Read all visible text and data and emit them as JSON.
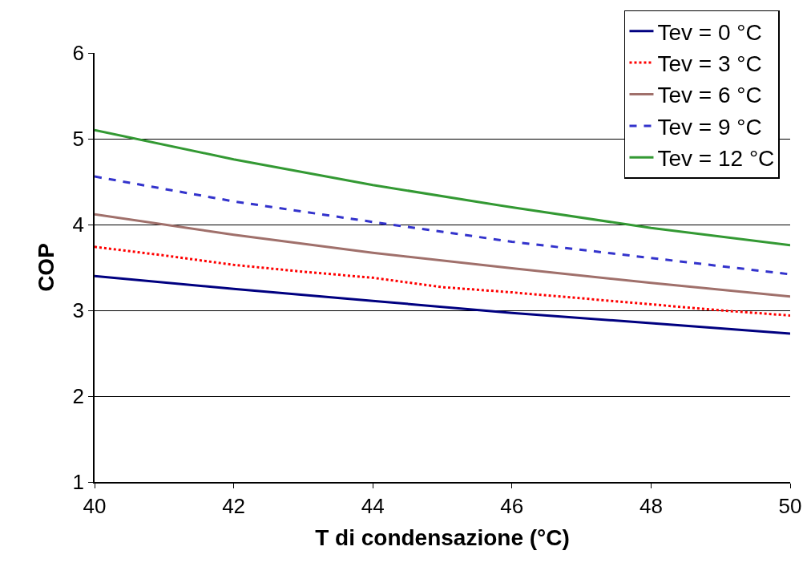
{
  "chart_data": {
    "type": "line",
    "xlabel": "T di condensazione (°C)",
    "ylabel": "COP",
    "xlim": [
      40,
      50
    ],
    "xticks": [
      40,
      42,
      44,
      46,
      48,
      50
    ],
    "ylim": [
      1,
      6
    ],
    "yticks": [
      1,
      2,
      3,
      4,
      5,
      6
    ],
    "grid": "y",
    "legend": "top right",
    "marker": "none",
    "series": [
      {
        "name": "Tev = 0 °C",
        "color": "#000080",
        "line_style": "solid",
        "x": [
          40,
          42,
          44,
          46,
          48,
          50
        ],
        "values": [
          3.4,
          3.25,
          3.11,
          2.97,
          2.85,
          2.73
        ]
      },
      {
        "name": "Tev = 3 °C",
        "color": "#ff0000",
        "line_style": "dotted",
        "x": [
          40,
          41,
          42,
          43,
          44,
          45,
          46,
          47,
          48,
          49,
          50
        ],
        "values": [
          3.74,
          3.64,
          3.53,
          3.45,
          3.38,
          3.27,
          3.21,
          3.14,
          3.07,
          3.0,
          2.94
        ]
      },
      {
        "name": "Tev = 6 °C",
        "color": "#a0706b",
        "line_style": "solid",
        "x": [
          40,
          42,
          44,
          46,
          48,
          50
        ],
        "values": [
          4.12,
          3.88,
          3.67,
          3.49,
          3.32,
          3.16
        ]
      },
      {
        "name": "Tev = 9 °C",
        "color": "#3333cc",
        "line_style": "dashed",
        "x": [
          40,
          42,
          44,
          46,
          48,
          50
        ],
        "values": [
          4.56,
          4.27,
          4.03,
          3.8,
          3.61,
          3.42
        ]
      },
      {
        "name": "Tev = 12 °C",
        "color": "#339933",
        "line_style": "solid",
        "x": [
          40,
          42,
          44,
          46,
          48,
          50
        ],
        "values": [
          5.1,
          4.76,
          4.46,
          4.2,
          3.96,
          3.76
        ]
      }
    ]
  }
}
